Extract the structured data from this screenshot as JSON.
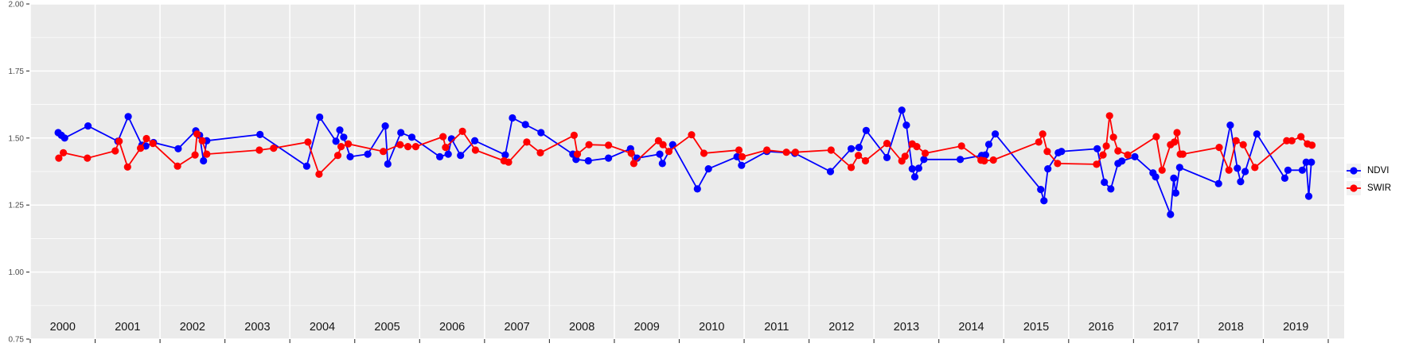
{
  "colors": {
    "panel_background": "#EBEBEB",
    "grid": "#FFFFFF",
    "axis_tick": "#333333",
    "axis_text": "#4D4D4D",
    "year_text": "#141414",
    "ndvi": "#0000FF",
    "swir": "#FF0000",
    "legend_key_background": "#F2F2F2"
  },
  "legend": {
    "position": "right",
    "items": [
      {
        "label": "NDVI",
        "color": "#0000FF"
      },
      {
        "label": "SWIR",
        "color": "#FF0000"
      }
    ]
  },
  "chart_data": {
    "type": "line",
    "title": "",
    "xlabel": "",
    "ylabel": "",
    "ylim": [
      0.75,
      2.0
    ],
    "yticks": [
      0.75,
      1.0,
      1.25,
      1.5,
      1.75,
      2.0
    ],
    "ytick_labels": [
      "0.75",
      "1.00",
      "1.25",
      "1.50",
      "1.75",
      "2.00"
    ],
    "categories": [
      "2000",
      "2001",
      "2002",
      "2003",
      "2004",
      "2005",
      "2006",
      "2007",
      "2008",
      "2009",
      "2010",
      "2011",
      "2012",
      "2013",
      "2014",
      "2015",
      "2016",
      "2017",
      "2018",
      "2019"
    ],
    "grid": "white major gridlines on gray panel; horizontal minors at 0.125 steps; vertical majors at year boundaries",
    "legend_position": "right",
    "series": [
      {
        "name": "NDVI",
        "color": "#0000FF",
        "points": [
          [
            2000.43,
            1.52
          ],
          [
            2000.48,
            1.51
          ],
          [
            2000.53,
            1.5
          ],
          [
            2000.89,
            1.545
          ],
          [
            2001.35,
            1.488
          ],
          [
            2001.51,
            1.58
          ],
          [
            2001.72,
            1.473
          ],
          [
            2001.78,
            1.47
          ],
          [
            2001.9,
            1.483
          ],
          [
            2002.28,
            1.46
          ],
          [
            2002.55,
            1.527
          ],
          [
            2002.61,
            1.51
          ],
          [
            2002.67,
            1.415
          ],
          [
            2002.72,
            1.49
          ],
          [
            2003.54,
            1.513
          ],
          [
            2004.26,
            1.395
          ],
          [
            2004.46,
            1.578
          ],
          [
            2004.71,
            1.488
          ],
          [
            2004.77,
            1.53
          ],
          [
            2004.83,
            1.503
          ],
          [
            2004.93,
            1.43
          ],
          [
            2005.2,
            1.44
          ],
          [
            2005.47,
            1.545
          ],
          [
            2005.51,
            1.403
          ],
          [
            2005.71,
            1.52
          ],
          [
            2005.88,
            1.503
          ],
          [
            2006.31,
            1.43
          ],
          [
            2006.44,
            1.44
          ],
          [
            2006.49,
            1.497
          ],
          [
            2006.63,
            1.435
          ],
          [
            2006.85,
            1.49
          ],
          [
            2007.32,
            1.437
          ],
          [
            2007.43,
            1.575
          ],
          [
            2007.63,
            1.55
          ],
          [
            2007.87,
            1.52
          ],
          [
            2008.36,
            1.44
          ],
          [
            2008.41,
            1.42
          ],
          [
            2008.6,
            1.415
          ],
          [
            2008.91,
            1.425
          ],
          [
            2009.25,
            1.46
          ],
          [
            2009.35,
            1.425
          ],
          [
            2009.7,
            1.44
          ],
          [
            2009.74,
            1.405
          ],
          [
            2009.9,
            1.475
          ],
          [
            2010.28,
            1.31
          ],
          [
            2010.45,
            1.385
          ],
          [
            2010.89,
            1.43
          ],
          [
            2010.96,
            1.398
          ],
          [
            2011.35,
            1.45
          ],
          [
            2011.78,
            1.443
          ],
          [
            2012.33,
            1.375
          ],
          [
            2012.65,
            1.46
          ],
          [
            2012.77,
            1.465
          ],
          [
            2012.88,
            1.528
          ],
          [
            2013.2,
            1.427
          ],
          [
            2013.43,
            1.604
          ],
          [
            2013.5,
            1.548
          ],
          [
            2013.59,
            1.385
          ],
          [
            2013.63,
            1.355
          ],
          [
            2013.69,
            1.387
          ],
          [
            2013.77,
            1.42
          ],
          [
            2014.33,
            1.42
          ],
          [
            2014.66,
            1.435
          ],
          [
            2014.72,
            1.437
          ],
          [
            2014.77,
            1.476
          ],
          [
            2014.87,
            1.515
          ],
          [
            2015.57,
            1.308
          ],
          [
            2015.62,
            1.266
          ],
          [
            2015.68,
            1.385
          ],
          [
            2015.84,
            1.445
          ],
          [
            2015.89,
            1.45
          ],
          [
            2016.44,
            1.46
          ],
          [
            2016.55,
            1.335
          ],
          [
            2016.65,
            1.31
          ],
          [
            2016.76,
            1.405
          ],
          [
            2016.82,
            1.414
          ],
          [
            2017.02,
            1.43
          ],
          [
            2017.3,
            1.37
          ],
          [
            2017.34,
            1.355
          ],
          [
            2017.57,
            1.215
          ],
          [
            2017.62,
            1.35
          ],
          [
            2017.65,
            1.295
          ],
          [
            2017.71,
            1.39
          ],
          [
            2018.31,
            1.33
          ],
          [
            2018.49,
            1.548
          ],
          [
            2018.6,
            1.387
          ],
          [
            2018.65,
            1.337
          ],
          [
            2018.72,
            1.375
          ],
          [
            2018.9,
            1.515
          ],
          [
            2019.33,
            1.35
          ],
          [
            2019.38,
            1.38
          ],
          [
            2019.6,
            1.38
          ],
          [
            2019.66,
            1.41
          ],
          [
            2019.7,
            1.283
          ],
          [
            2019.74,
            1.41
          ]
        ]
      },
      {
        "name": "SWIR",
        "color": "#FF0000",
        "points": [
          [
            2000.44,
            1.425
          ],
          [
            2000.51,
            1.445
          ],
          [
            2000.88,
            1.425
          ],
          [
            2001.31,
            1.452
          ],
          [
            2001.37,
            1.488
          ],
          [
            2001.5,
            1.392
          ],
          [
            2001.7,
            1.462
          ],
          [
            2001.79,
            1.498
          ],
          [
            2001.89,
            1.48
          ],
          [
            2002.27,
            1.395
          ],
          [
            2002.54,
            1.437
          ],
          [
            2002.57,
            1.515
          ],
          [
            2002.65,
            1.49
          ],
          [
            2002.72,
            1.44
          ],
          [
            2003.53,
            1.455
          ],
          [
            2003.75,
            1.462
          ],
          [
            2004.28,
            1.485
          ],
          [
            2004.45,
            1.365
          ],
          [
            2004.74,
            1.435
          ],
          [
            2004.79,
            1.468
          ],
          [
            2004.9,
            1.478
          ],
          [
            2005.44,
            1.45
          ],
          [
            2005.7,
            1.475
          ],
          [
            2005.82,
            1.468
          ],
          [
            2005.94,
            1.468
          ],
          [
            2006.36,
            1.505
          ],
          [
            2006.4,
            1.465
          ],
          [
            2006.66,
            1.525
          ],
          [
            2006.86,
            1.455
          ],
          [
            2007.3,
            1.415
          ],
          [
            2007.37,
            1.41
          ],
          [
            2007.65,
            1.485
          ],
          [
            2007.86,
            1.445
          ],
          [
            2008.38,
            1.51
          ],
          [
            2008.43,
            1.44
          ],
          [
            2008.61,
            1.475
          ],
          [
            2008.91,
            1.473
          ],
          [
            2009.26,
            1.443
          ],
          [
            2009.3,
            1.405
          ],
          [
            2009.68,
            1.49
          ],
          [
            2009.75,
            1.475
          ],
          [
            2009.84,
            1.45
          ],
          [
            2010.19,
            1.512
          ],
          [
            2010.38,
            1.443
          ],
          [
            2010.92,
            1.455
          ],
          [
            2010.97,
            1.43
          ],
          [
            2011.35,
            1.455
          ],
          [
            2011.65,
            1.447
          ],
          [
            2011.79,
            1.447
          ],
          [
            2012.34,
            1.455
          ],
          [
            2012.65,
            1.39
          ],
          [
            2012.76,
            1.435
          ],
          [
            2012.87,
            1.415
          ],
          [
            2013.2,
            1.48
          ],
          [
            2013.43,
            1.414
          ],
          [
            2013.48,
            1.432
          ],
          [
            2013.59,
            1.478
          ],
          [
            2013.66,
            1.468
          ],
          [
            2013.79,
            1.443
          ],
          [
            2014.35,
            1.47
          ],
          [
            2014.65,
            1.417
          ],
          [
            2014.7,
            1.415
          ],
          [
            2014.84,
            1.418
          ],
          [
            2015.54,
            1.485
          ],
          [
            2015.6,
            1.515
          ],
          [
            2015.67,
            1.45
          ],
          [
            2015.83,
            1.405
          ],
          [
            2016.43,
            1.402
          ],
          [
            2016.53,
            1.437
          ],
          [
            2016.58,
            1.47
          ],
          [
            2016.63,
            1.583
          ],
          [
            2016.69,
            1.503
          ],
          [
            2016.76,
            1.452
          ],
          [
            2016.91,
            1.437
          ],
          [
            2017.35,
            1.505
          ],
          [
            2017.44,
            1.38
          ],
          [
            2017.57,
            1.475
          ],
          [
            2017.63,
            1.485
          ],
          [
            2017.67,
            1.52
          ],
          [
            2017.72,
            1.44
          ],
          [
            2017.76,
            1.44
          ],
          [
            2018.32,
            1.465
          ],
          [
            2018.47,
            1.38
          ],
          [
            2018.58,
            1.49
          ],
          [
            2018.69,
            1.475
          ],
          [
            2018.87,
            1.39
          ],
          [
            2019.36,
            1.49
          ],
          [
            2019.44,
            1.49
          ],
          [
            2019.58,
            1.505
          ],
          [
            2019.68,
            1.478
          ],
          [
            2019.75,
            1.473
          ]
        ]
      }
    ]
  }
}
